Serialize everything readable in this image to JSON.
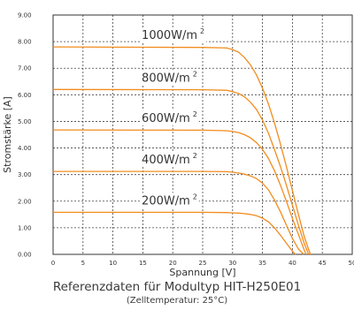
{
  "chart_data": {
    "type": "line",
    "xlabel": "Spannung [V]",
    "ylabel": "Stromstärke [A]",
    "xlim": [
      0,
      50
    ],
    "ylim": [
      0,
      9
    ],
    "x_ticks": [
      "0",
      "5",
      "10",
      "15",
      "20",
      "25",
      "30",
      "35",
      "40",
      "45",
      "50"
    ],
    "y_ticks": [
      "0.00",
      "1.00",
      "2.00",
      "3.00",
      "4.00",
      "5.00",
      "6.00",
      "7.00",
      "8.00",
      "9.00"
    ],
    "grid": true,
    "line_color": "#f28c1e",
    "series": [
      {
        "name": "1000W/m²",
        "label_text": "1000W/m",
        "label_sup": "2",
        "x": [
          0,
          25,
          29,
          30,
          31,
          32,
          33,
          34,
          35,
          36,
          37,
          38,
          39,
          40,
          41,
          42,
          43.0
        ],
        "values": [
          7.8,
          7.78,
          7.76,
          7.7,
          7.6,
          7.4,
          7.12,
          6.75,
          6.25,
          5.65,
          4.95,
          4.15,
          3.3,
          2.4,
          1.5,
          0.65,
          0.0
        ]
      },
      {
        "name": "800W/m²",
        "label_text": "800W/m",
        "label_sup": "2",
        "x": [
          0,
          25,
          29,
          30,
          31,
          32,
          33,
          34,
          35,
          36,
          37,
          38,
          39,
          40,
          41,
          42,
          42.7
        ],
        "values": [
          6.2,
          6.19,
          6.17,
          6.12,
          6.05,
          5.92,
          5.72,
          5.45,
          5.05,
          4.55,
          3.95,
          3.3,
          2.6,
          1.85,
          1.1,
          0.4,
          0.0
        ]
      },
      {
        "name": "600W/m²",
        "label_text": "600W/m",
        "label_sup": "2",
        "x": [
          0,
          25,
          29,
          30,
          31,
          32,
          33,
          34,
          35,
          36,
          37,
          38,
          39,
          40,
          41,
          42,
          42.3
        ],
        "values": [
          4.68,
          4.67,
          4.65,
          4.62,
          4.58,
          4.5,
          4.38,
          4.2,
          3.95,
          3.6,
          3.15,
          2.6,
          2.0,
          1.35,
          0.75,
          0.15,
          0.0
        ]
      },
      {
        "name": "400W/m²",
        "label_text": "400W/m",
        "label_sup": "2",
        "x": [
          0,
          25,
          29,
          30,
          31,
          32,
          33,
          34,
          35,
          36,
          37,
          38,
          39,
          40,
          41,
          41.9
        ],
        "values": [
          3.12,
          3.12,
          3.11,
          3.09,
          3.06,
          3.02,
          2.95,
          2.85,
          2.68,
          2.42,
          2.05,
          1.6,
          1.1,
          0.6,
          0.2,
          0.0
        ]
      },
      {
        "name": "200W/m²",
        "label_text": "200W/m",
        "label_sup": "2",
        "x": [
          0,
          25,
          29,
          30,
          31,
          32,
          33,
          34,
          35,
          36,
          37,
          38,
          39,
          40,
          40.5
        ],
        "values": [
          1.58,
          1.58,
          1.57,
          1.56,
          1.55,
          1.53,
          1.5,
          1.45,
          1.36,
          1.22,
          1.0,
          0.72,
          0.42,
          0.12,
          0.0
        ]
      }
    ]
  },
  "caption": {
    "title": "Referenzdaten für Modultyp HIT-H250E01",
    "subtitle": "(Zelltemperatur: 25°C)"
  }
}
